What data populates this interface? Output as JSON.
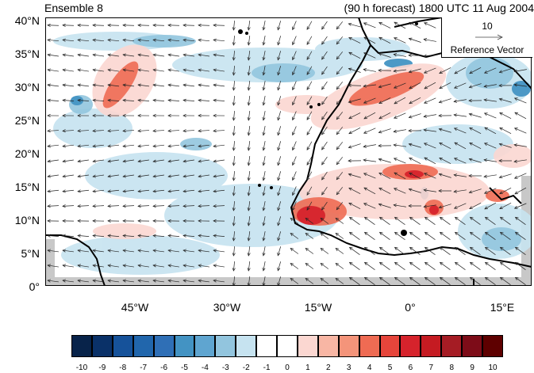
{
  "header": {
    "left_title": "Ensemble 8",
    "right_title": "(90 h forecast) 1800 UTC 11 Aug 2004"
  },
  "y_ticks": [
    "40°N",
    "35°N",
    "30°N",
    "25°N",
    "20°N",
    "15°N",
    "10°N",
    "5°N",
    "0°"
  ],
  "x_ticks": [
    "45°W",
    "30°W",
    "15°W",
    "0°",
    "15°E"
  ],
  "reference": {
    "magnitude": "10",
    "label": "Reference Vector"
  },
  "colorbar": {
    "labels": [
      "-10",
      "-9",
      "-8",
      "-7",
      "-6",
      "-5",
      "-4",
      "-3",
      "-2",
      "-1",
      "0",
      "1",
      "2",
      "3",
      "4",
      "5",
      "6",
      "7",
      "8",
      "9",
      "10"
    ],
    "colors": [
      "#08234a",
      "#0a3168",
      "#16529a",
      "#2166ac",
      "#2f6fb6",
      "#4393c3",
      "#5fa5d0",
      "#92c5de",
      "#c6e3f0",
      "#ffffff",
      "#ffffff",
      "#fbd7d1",
      "#f8b6a4",
      "#f4947a",
      "#ef6b53",
      "#e6453b",
      "#d6232c",
      "#c51b22",
      "#a51c24",
      "#7d0c18",
      "#5e0000"
    ]
  }
}
